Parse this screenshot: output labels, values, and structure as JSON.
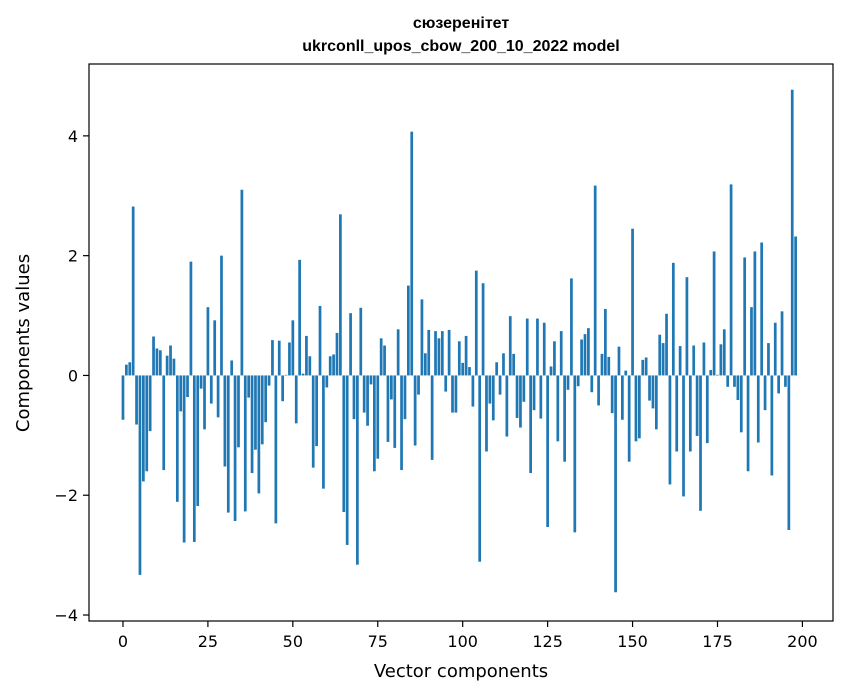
{
  "chart_data": {
    "type": "bar",
    "title": "сюзеренітет",
    "subtitle": "ukrconll_upos_cbow_200_10_2022 model",
    "xlabel": "Vector components",
    "ylabel": "Components values",
    "xlim": [
      -10,
      209
    ],
    "ylim": [
      -4.1,
      5.2
    ],
    "xticks": [
      0,
      25,
      50,
      75,
      100,
      125,
      150,
      175,
      200
    ],
    "yticks": [
      -4,
      -2,
      0,
      2,
      4
    ],
    "ytick_labels": [
      "−4",
      "−2",
      "0",
      "2",
      "4"
    ],
    "bar_color": "#1f77b4",
    "grid": false,
    "values": [
      -0.74,
      0.18,
      0.22,
      2.82,
      -0.82,
      -3.33,
      -1.77,
      -1.6,
      -0.93,
      0.65,
      0.45,
      0.42,
      -1.58,
      0.33,
      0.5,
      0.28,
      -2.11,
      -0.6,
      -2.79,
      -0.36,
      1.9,
      -2.78,
      -2.18,
      -0.22,
      -0.9,
      1.14,
      -0.47,
      0.92,
      -0.7,
      2.0,
      -1.52,
      -2.29,
      0.25,
      -2.43,
      -1.2,
      3.1,
      -2.27,
      -0.37,
      -1.63,
      -1.24,
      -1.97,
      -1.15,
      -0.78,
      -0.17,
      0.59,
      -2.47,
      0.58,
      -0.43,
      0.01,
      0.55,
      0.92,
      -0.8,
      1.93,
      0.03,
      0.66,
      0.32,
      -1.54,
      -1.18,
      1.16,
      -1.89,
      -0.2,
      0.32,
      0.35,
      0.71,
      2.69,
      -2.28,
      -2.83,
      1.04,
      -0.73,
      -3.16,
      1.13,
      -0.62,
      -0.84,
      -0.15,
      -1.6,
      -1.39,
      0.62,
      0.5,
      -1.11,
      -0.4,
      -1.21,
      0.77,
      -1.58,
      -0.73,
      1.5,
      4.07,
      -1.17,
      -0.32,
      1.27,
      0.37,
      0.76,
      -1.41,
      0.74,
      0.62,
      0.74,
      -0.27,
      0.76,
      -0.62,
      -0.62,
      0.57,
      0.21,
      0.66,
      0.14,
      -0.52,
      1.75,
      -3.11,
      1.54,
      -1.27,
      -0.47,
      -0.75,
      0.22,
      -0.32,
      0.37,
      -1.02,
      0.99,
      0.36,
      -0.71,
      -0.87,
      -0.44,
      0.95,
      -1.63,
      -0.58,
      0.95,
      -0.72,
      0.88,
      -2.53,
      0.15,
      0.57,
      -1.1,
      0.74,
      -1.44,
      -0.24,
      1.62,
      -2.62,
      -0.18,
      0.6,
      0.69,
      0.79,
      -0.28,
      3.17,
      -0.5,
      0.36,
      1.11,
      0.31,
      -0.63,
      -3.62,
      0.48,
      -0.74,
      0.08,
      -1.44,
      2.45,
      -1.1,
      -1.05,
      0.26,
      0.3,
      -0.42,
      -0.55,
      -0.9,
      0.68,
      0.54,
      1.03,
      -1.82,
      1.88,
      -1.27,
      0.49,
      -2.02,
      1.64,
      -1.27,
      0.5,
      -1.01,
      -2.26,
      0.55,
      -1.13,
      0.09,
      2.07,
      0.01,
      0.52,
      0.77,
      -0.19,
      3.19,
      -0.19,
      -0.41,
      -0.95,
      1.97,
      -1.6,
      1.14,
      2.07,
      -1.12,
      2.22,
      -0.58,
      0.54,
      -1.67,
      0.88,
      -0.3,
      1.07,
      -0.19,
      -2.58,
      4.77,
      2.32
    ]
  }
}
